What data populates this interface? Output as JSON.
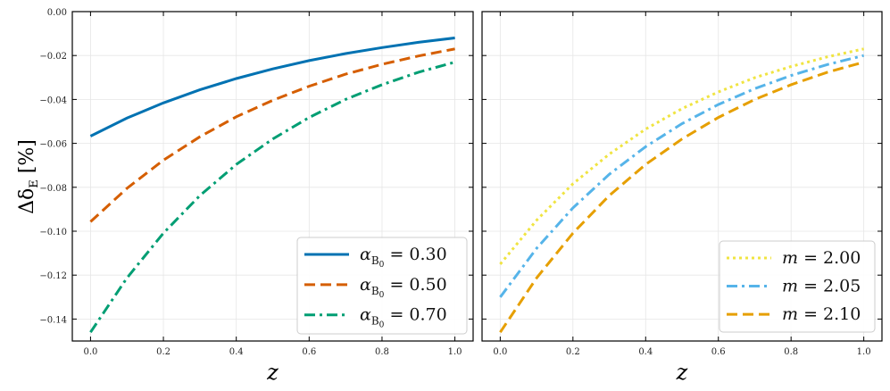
{
  "chart_data": [
    {
      "type": "line",
      "ylabel": "Δδ_E [%]",
      "ylabel_parts": {
        "main": "Δδ",
        "sub": "E",
        "unit": " [%]"
      },
      "xlabel": "z",
      "xlim": [
        -0.05,
        1.05
      ],
      "ylim": [
        -0.15,
        0.0
      ],
      "grid": true,
      "legend": "bottom-right",
      "xticks": [
        "0.0",
        "0.2",
        "0.4",
        "0.6",
        "0.8",
        "1.0"
      ],
      "yticks": [
        "0.00",
        "−0.02",
        "−0.04",
        "−0.06",
        "−0.08",
        "−0.10",
        "−0.12",
        "−0.14"
      ],
      "x": [
        0,
        0.1,
        0.2,
        0.3,
        0.4,
        0.5,
        0.6,
        0.7,
        0.8,
        0.9,
        1.0
      ],
      "series": [
        {
          "name": "α_B0 = 0.30",
          "sym": "α",
          "sub": "B",
          "subsub": "0",
          "val": " = 0.30",
          "color": "#0072B2",
          "dash": "solid",
          "values": [
            -0.0567,
            -0.0485,
            -0.0416,
            -0.0356,
            -0.0305,
            -0.0261,
            -0.0223,
            -0.0191,
            -0.0164,
            -0.014,
            -0.012
          ]
        },
        {
          "name": "α_B0 = 0.50",
          "sym": "α",
          "sub": "B",
          "subsub": "0",
          "val": " = 0.50",
          "color": "#D55E00",
          "dash": "dashed",
          "values": [
            -0.0957,
            -0.0805,
            -0.0677,
            -0.057,
            -0.0479,
            -0.0404,
            -0.034,
            -0.0285,
            -0.024,
            -0.0202,
            -0.017
          ]
        },
        {
          "name": "α_B0 = 0.70",
          "sym": "α",
          "sub": "B",
          "subsub": "0",
          "val": " = 0.70",
          "color": "#009E73",
          "dash": "dashdot",
          "values": [
            -0.146,
            -0.1213,
            -0.1009,
            -0.0838,
            -0.0696,
            -0.058,
            -0.0482,
            -0.04,
            -0.0333,
            -0.0276,
            -0.023
          ]
        }
      ]
    },
    {
      "type": "line",
      "xlabel": "z",
      "xlim": [
        -0.05,
        1.05
      ],
      "ylim": [
        -0.15,
        0.0
      ],
      "grid": true,
      "legend": "bottom-right",
      "sharey": true,
      "xticks": [
        "0.0",
        "0.2",
        "0.4",
        "0.6",
        "0.8",
        "1.0"
      ],
      "x": [
        0,
        0.1,
        0.2,
        0.3,
        0.4,
        0.5,
        0.6,
        0.7,
        0.8,
        0.9,
        1.0
      ],
      "series": [
        {
          "name": "m = 2.00",
          "sym": "m",
          "sub": "",
          "subsub": "",
          "val": " = 2.00",
          "color": "#F0E442",
          "dash": "dotted",
          "values": [
            -0.115,
            -0.095,
            -0.0784,
            -0.0649,
            -0.0535,
            -0.0442,
            -0.0366,
            -0.0301,
            -0.025,
            -0.0206,
            -0.017
          ]
        },
        {
          "name": "m = 2.05",
          "sym": "m",
          "sub": "",
          "subsub": "",
          "val": " = 2.05",
          "color": "#56B4E9",
          "dash": "dashdot",
          "values": [
            -0.13,
            -0.1078,
            -0.0894,
            -0.0741,
            -0.0615,
            -0.051,
            -0.0423,
            -0.0351,
            -0.0291,
            -0.0241,
            -0.02
          ]
        },
        {
          "name": "m = 2.10",
          "sym": "m",
          "sub": "",
          "subsub": "",
          "val": " = 2.10",
          "color": "#E69F00",
          "dash": "dashed",
          "values": [
            -0.146,
            -0.1213,
            -0.1009,
            -0.0838,
            -0.0696,
            -0.058,
            -0.0482,
            -0.04,
            -0.0333,
            -0.0276,
            -0.023
          ]
        }
      ]
    }
  ]
}
